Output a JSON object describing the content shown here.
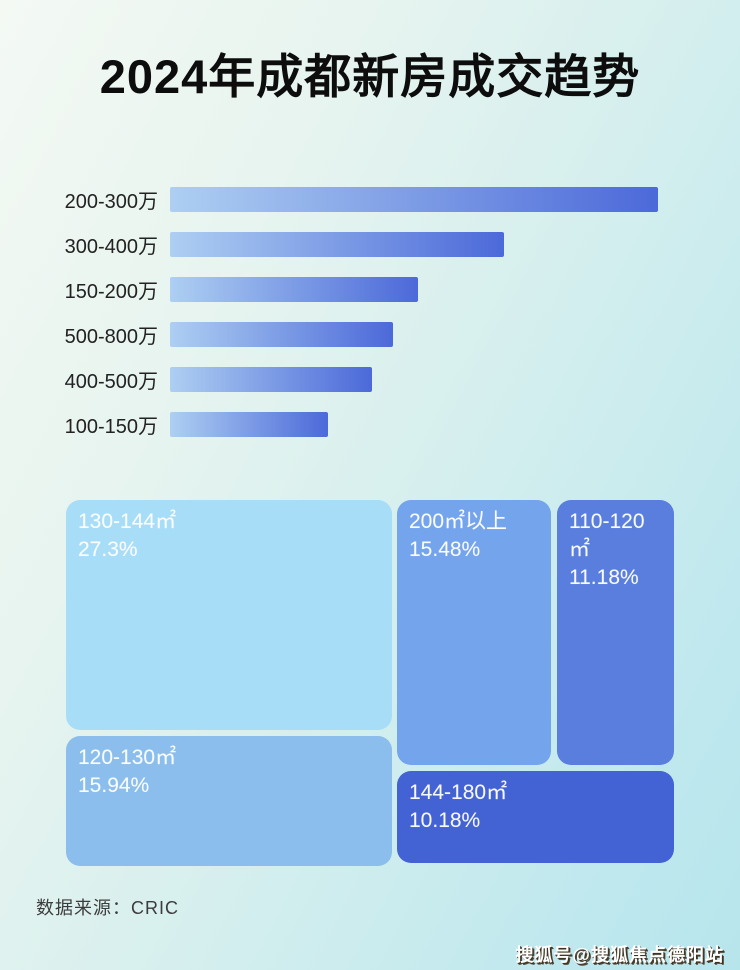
{
  "page": {
    "title": "2024年成都新房成交趋势",
    "source_label": "数据来源：CRIC",
    "watermark": "搜狐号@搜狐焦点德阳站"
  },
  "colors": {
    "bar_gradient_start": "#aecff2",
    "bar_gradient_end": "#4c69d9",
    "title_color": "#0d0d0d",
    "background_top_left": "#f4f9f4",
    "background_bottom_right": "#b7e5ec"
  },
  "bars": {
    "items": [
      {
        "label": "200-300万",
        "width_pct": 100
      },
      {
        "label": "300-400万",
        "width_pct": 68.4
      },
      {
        "label": "150-200万",
        "width_pct": 50.8
      },
      {
        "label": "500-800万",
        "width_pct": 45.7
      },
      {
        "label": "400-500万",
        "width_pct": 41.4
      },
      {
        "label": "100-150万",
        "width_pct": 32.4
      }
    ]
  },
  "treemap": {
    "tiles": [
      {
        "label": "130-144㎡",
        "value": "27.3%",
        "color": "#a8ddf8"
      },
      {
        "label": "120-130㎡",
        "value": "15.94%",
        "color": "#8bbeec"
      },
      {
        "label": "200㎡以上",
        "value": "15.48%",
        "color": "#74a4ec"
      },
      {
        "label": "110-120㎡",
        "value": "11.18%",
        "color": "#5a7edd"
      },
      {
        "label": "144-180㎡",
        "value": "10.18%",
        "color": "#4362d3"
      }
    ]
  },
  "chart_data": [
    {
      "type": "bar",
      "orientation": "horizontal",
      "title": "2024年成都新房成交趋势",
      "categories": [
        "200-300万",
        "300-400万",
        "150-200万",
        "500-800万",
        "400-500万",
        "100-150万"
      ],
      "values": [
        100,
        68.4,
        50.8,
        45.7,
        41.4,
        32.4
      ],
      "value_unit": "relative length, longest bar = 100 (no numeric axis or data labels shown)",
      "xlabel": "",
      "ylabel": "",
      "grid": false,
      "legend": false,
      "bar_color": "gradient #aecff2 → #4c69d9"
    },
    {
      "type": "treemap",
      "title": "",
      "items": [
        {
          "label": "130-144㎡",
          "value": 27.3
        },
        {
          "label": "120-130㎡",
          "value": 15.94
        },
        {
          "label": "200㎡以上",
          "value": 15.48
        },
        {
          "label": "110-120㎡",
          "value": 11.18
        },
        {
          "label": "144-180㎡",
          "value": 10.18
        }
      ],
      "value_unit": "%",
      "legend": false
    }
  ]
}
